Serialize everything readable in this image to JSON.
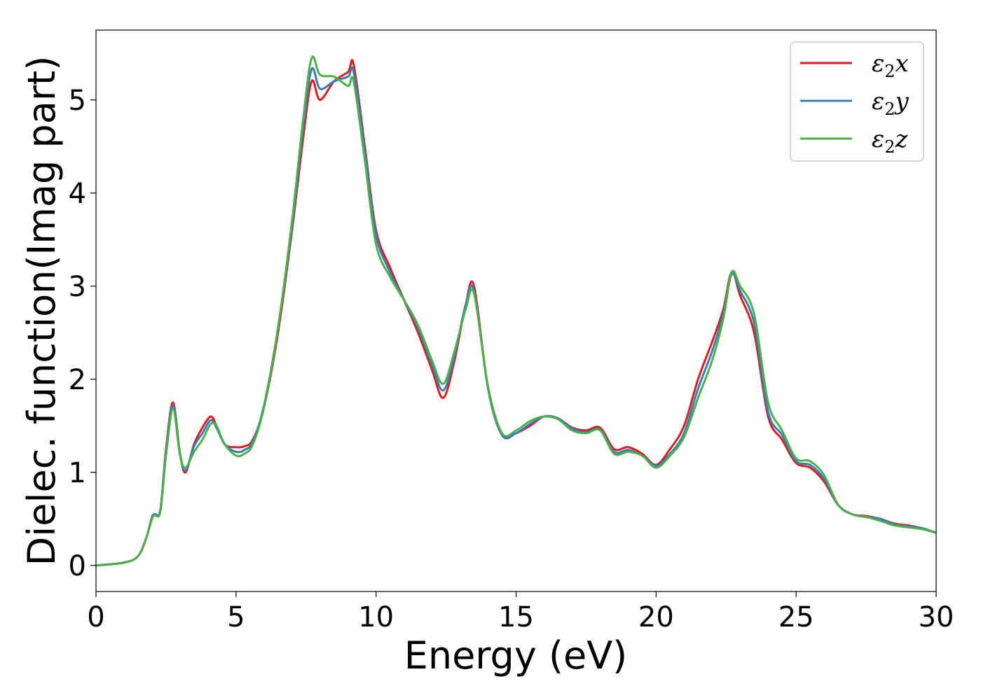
{
  "chart_data": {
    "type": "line",
    "xlabel": "Energy (eV)",
    "ylabel": "Dielec. function(Imag part)",
    "xlim": [
      0,
      30
    ],
    "ylim": [
      -0.28,
      5.75
    ],
    "xticks": [
      "0",
      "5",
      "10",
      "15",
      "20",
      "25",
      "30"
    ],
    "yticks": [
      "0",
      "1",
      "2",
      "3",
      "4",
      "5"
    ],
    "grid": false,
    "legend_position": "top-right",
    "series": [
      {
        "name": "ε₂x",
        "legend_base": "ε",
        "legend_sub": "2",
        "legend_var": "x",
        "color": "#e31a1c",
        "x": [
          0,
          1,
          1.5,
          1.8,
          2.0,
          2.1,
          2.3,
          2.5,
          2.75,
          3.0,
          3.2,
          3.5,
          3.8,
          4.1,
          4.3,
          4.6,
          5.0,
          5.3,
          5.6,
          6.0,
          6.5,
          7.0,
          7.4,
          7.7,
          8.0,
          8.5,
          9.0,
          9.2,
          9.6,
          10.0,
          10.5,
          11.0,
          11.5,
          12.0,
          12.4,
          12.8,
          13.2,
          13.5,
          14.0,
          14.5,
          15.0,
          15.5,
          16.0,
          16.5,
          17.0,
          17.5,
          18.0,
          18.5,
          19.0,
          19.5,
          20.0,
          20.5,
          21.0,
          21.5,
          22.0,
          22.4,
          22.7,
          23.0,
          23.5,
          24.0,
          24.5,
          25.0,
          25.5,
          26.0,
          26.5,
          27.0,
          27.5,
          28.0,
          28.5,
          29.0,
          29.5,
          30.0
        ],
        "y": [
          0.0,
          0.03,
          0.1,
          0.3,
          0.52,
          0.55,
          0.6,
          1.25,
          1.75,
          1.2,
          1.0,
          1.3,
          1.48,
          1.6,
          1.5,
          1.3,
          1.27,
          1.28,
          1.35,
          1.7,
          2.5,
          3.6,
          4.6,
          5.2,
          5.0,
          5.2,
          5.3,
          5.38,
          4.5,
          3.6,
          3.2,
          2.85,
          2.5,
          2.1,
          1.8,
          2.2,
          2.8,
          3.0,
          1.9,
          1.4,
          1.42,
          1.5,
          1.6,
          1.58,
          1.48,
          1.45,
          1.48,
          1.25,
          1.27,
          1.2,
          1.08,
          1.25,
          1.5,
          2.0,
          2.4,
          2.75,
          3.15,
          2.9,
          2.5,
          1.6,
          1.35,
          1.1,
          1.05,
          0.9,
          0.65,
          0.55,
          0.53,
          0.5,
          0.45,
          0.43,
          0.4,
          0.35
        ]
      },
      {
        "name": "ε₂y",
        "legend_base": "ε",
        "legend_sub": "2",
        "legend_var": "y",
        "color": "#377eb8",
        "x": [
          0,
          1,
          1.5,
          1.8,
          2.0,
          2.1,
          2.3,
          2.5,
          2.75,
          3.0,
          3.2,
          3.5,
          3.8,
          4.1,
          4.3,
          4.6,
          5.0,
          5.3,
          5.6,
          6.0,
          6.5,
          7.0,
          7.4,
          7.7,
          8.0,
          8.5,
          9.0,
          9.2,
          9.6,
          10.0,
          10.5,
          11.0,
          11.5,
          12.0,
          12.4,
          12.8,
          13.2,
          13.5,
          14.0,
          14.5,
          15.0,
          15.5,
          16.0,
          16.5,
          17.0,
          17.5,
          18.0,
          18.5,
          19.0,
          19.5,
          20.0,
          20.5,
          21.0,
          21.5,
          22.0,
          22.4,
          22.7,
          23.0,
          23.5,
          24.0,
          24.5,
          25.0,
          25.5,
          26.0,
          26.5,
          27.0,
          27.5,
          28.0,
          28.5,
          29.0,
          29.5,
          30.0
        ],
        "y": [
          0.0,
          0.03,
          0.1,
          0.3,
          0.52,
          0.55,
          0.6,
          1.22,
          1.72,
          1.2,
          1.02,
          1.28,
          1.42,
          1.56,
          1.48,
          1.3,
          1.22,
          1.24,
          1.33,
          1.72,
          2.55,
          3.65,
          4.7,
          5.33,
          5.12,
          5.2,
          5.25,
          5.3,
          4.45,
          3.55,
          3.15,
          2.85,
          2.55,
          2.15,
          1.88,
          2.25,
          2.8,
          2.95,
          1.9,
          1.4,
          1.42,
          1.52,
          1.6,
          1.58,
          1.47,
          1.43,
          1.46,
          1.22,
          1.24,
          1.18,
          1.07,
          1.2,
          1.42,
          1.9,
          2.3,
          2.7,
          3.13,
          2.95,
          2.6,
          1.65,
          1.4,
          1.12,
          1.08,
          0.93,
          0.65,
          0.55,
          0.52,
          0.5,
          0.44,
          0.42,
          0.4,
          0.35
        ]
      },
      {
        "name": "ε₂z",
        "legend_base": "ε",
        "legend_sub": "2",
        "legend_var": "z",
        "color": "#4daf4a",
        "x": [
          0,
          1,
          1.5,
          1.8,
          2.0,
          2.1,
          2.3,
          2.5,
          2.75,
          3.0,
          3.2,
          3.5,
          3.8,
          4.1,
          4.3,
          4.6,
          5.0,
          5.3,
          5.6,
          6.0,
          6.5,
          7.0,
          7.4,
          7.7,
          8.0,
          8.5,
          9.0,
          9.2,
          9.6,
          10.0,
          10.5,
          11.0,
          11.5,
          12.0,
          12.4,
          12.8,
          13.2,
          13.5,
          14.0,
          14.5,
          15.0,
          15.5,
          16.0,
          16.5,
          17.0,
          17.5,
          18.0,
          18.5,
          19.0,
          19.5,
          20.0,
          20.5,
          21.0,
          21.5,
          22.0,
          22.4,
          22.7,
          23.0,
          23.5,
          24.0,
          24.5,
          25.0,
          25.5,
          26.0,
          26.5,
          27.0,
          27.5,
          28.0,
          28.5,
          29.0,
          29.5,
          30.0
        ],
        "y": [
          0.0,
          0.03,
          0.1,
          0.3,
          0.5,
          0.54,
          0.58,
          1.18,
          1.68,
          1.18,
          1.05,
          1.22,
          1.35,
          1.52,
          1.5,
          1.3,
          1.18,
          1.2,
          1.3,
          1.7,
          2.55,
          3.7,
          4.8,
          5.45,
          5.27,
          5.25,
          5.15,
          5.2,
          4.35,
          3.45,
          3.1,
          2.85,
          2.58,
          2.2,
          1.95,
          2.3,
          2.75,
          2.92,
          1.92,
          1.42,
          1.45,
          1.55,
          1.6,
          1.57,
          1.45,
          1.42,
          1.45,
          1.2,
          1.22,
          1.18,
          1.05,
          1.18,
          1.38,
          1.8,
          2.2,
          2.65,
          3.15,
          3.0,
          2.7,
          1.75,
          1.45,
          1.15,
          1.12,
          0.97,
          0.65,
          0.55,
          0.52,
          0.48,
          0.43,
          0.41,
          0.39,
          0.35
        ]
      }
    ]
  }
}
